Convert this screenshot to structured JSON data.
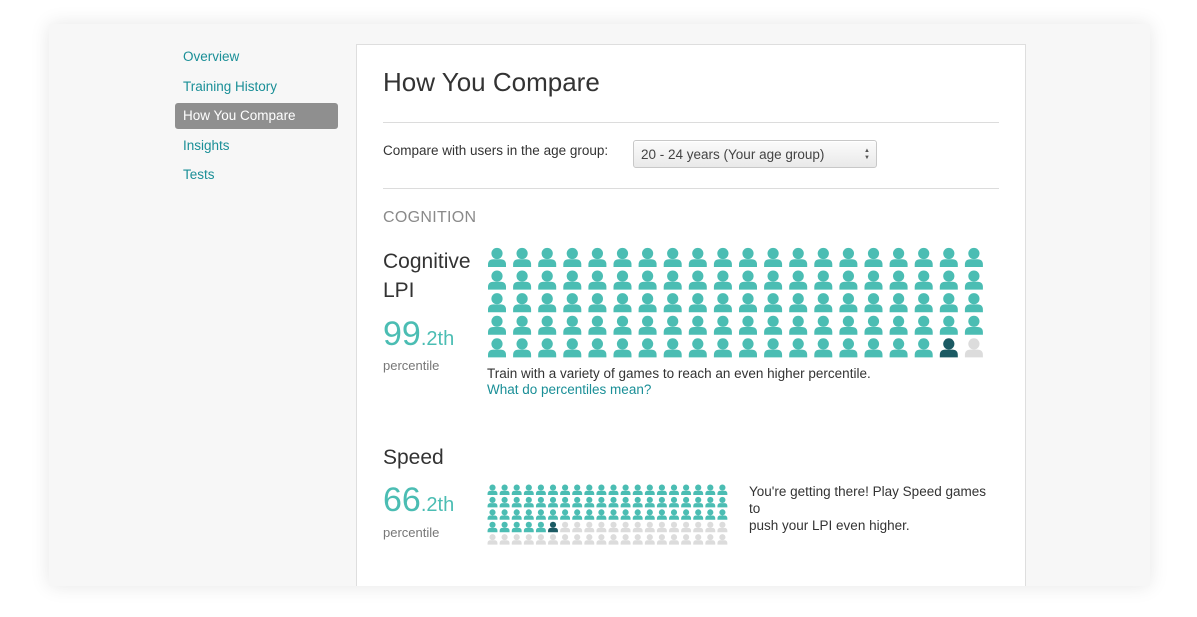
{
  "sidebar": {
    "items": [
      {
        "label": "Overview"
      },
      {
        "label": "Training History"
      },
      {
        "label": "How You Compare",
        "active": true
      },
      {
        "label": "Insights"
      },
      {
        "label": "Tests"
      }
    ]
  },
  "main": {
    "title": "How You Compare",
    "compare_label": "Compare with users in the age group:",
    "age_select": {
      "selected": "20 - 24 years (Your age group)"
    },
    "section_heading": "COGNITION",
    "cognitive": {
      "name_line1": "Cognitive",
      "name_line2": "LPI",
      "percentile_int": "99",
      "percentile_dec": ".2th",
      "percentile_label": "percentile",
      "percentile_value": 99.2,
      "tip": "Train with a variety of games to reach an even higher percentile.",
      "link": "What do percentiles mean?"
    },
    "speed": {
      "name": "Speed",
      "percentile_int": "66",
      "percentile_dec": ".2th",
      "percentile_label": "percentile",
      "percentile_value": 66.2,
      "tip_line1": "You're getting there! Play Speed games to",
      "tip_line2": "push your LPI even higher."
    }
  },
  "colors": {
    "accent": "#1a8f97",
    "person_filled": "#4bbdb3",
    "person_you": "#1b5a63",
    "person_empty": "#dcdcdc",
    "sidebar_active_bg": "#8f8f8f"
  },
  "icons": {
    "person": "person-icon",
    "select_arrows": "up-down-arrows-icon"
  }
}
